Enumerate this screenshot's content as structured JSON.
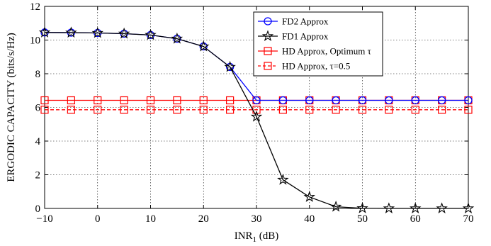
{
  "chart_data": {
    "type": "line",
    "title": "",
    "xlabel": "INR",
    "xlabel_sub": "1",
    "xlabel_unit": " (dB)",
    "ylabel": "ERGODIC CAPACITY (bits/s/Hz)",
    "xlim": [
      -10,
      70
    ],
    "ylim": [
      0,
      12
    ],
    "xticks": [
      -10,
      0,
      10,
      20,
      30,
      40,
      50,
      60,
      70
    ],
    "yticks": [
      0,
      2,
      4,
      6,
      8,
      10,
      12
    ],
    "grid": true,
    "legend_position": "top-right",
    "x": [
      -10,
      -5,
      0,
      5,
      10,
      15,
      20,
      25,
      30,
      35,
      40,
      45,
      50,
      55,
      60,
      65,
      70
    ],
    "series": [
      {
        "name": "FD2 Approx",
        "color": "#0000ff",
        "marker": "circle",
        "dash": "solid",
        "values": [
          10.45,
          10.44,
          10.42,
          10.38,
          10.3,
          10.08,
          9.62,
          8.4,
          6.42,
          6.42,
          6.42,
          6.42,
          6.42,
          6.42,
          6.42,
          6.42,
          6.42
        ]
      },
      {
        "name": "FD1 Approx",
        "color": "#000000",
        "marker": "star",
        "dash": "solid",
        "values": [
          10.45,
          10.44,
          10.42,
          10.38,
          10.3,
          10.08,
          9.62,
          8.4,
          5.45,
          1.7,
          0.68,
          0.1,
          0.01,
          0.0,
          0.0,
          0.0,
          0.0
        ]
      },
      {
        "name": "HD Approx, Optimum τ",
        "color": "#ff0000",
        "marker": "square",
        "dash": "solid",
        "values": [
          6.42,
          6.42,
          6.42,
          6.42,
          6.42,
          6.42,
          6.42,
          6.42,
          6.42,
          6.42,
          6.42,
          6.42,
          6.42,
          6.42,
          6.42,
          6.42,
          6.42
        ]
      },
      {
        "name": "HD Approx, τ=0.5",
        "color": "#ff0000",
        "marker": "square",
        "dash": "dashed",
        "values": [
          5.86,
          5.86,
          5.86,
          5.86,
          5.86,
          5.86,
          5.86,
          5.86,
          5.86,
          5.86,
          5.86,
          5.86,
          5.86,
          5.86,
          5.86,
          5.86,
          5.86
        ]
      }
    ]
  }
}
